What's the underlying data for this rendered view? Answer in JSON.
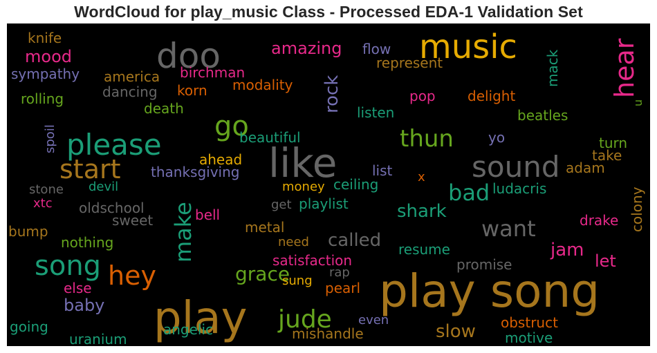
{
  "chart_data": {
    "type": "wordcloud",
    "title": "WordCloud for play_music Class - Processed EDA-1 Validation Set",
    "background": "#000000",
    "words": [
      {
        "text": "play song",
        "weight": 100,
        "color": "#a6761d"
      },
      {
        "text": "play",
        "weight": 92,
        "color": "#a6761d"
      },
      {
        "text": "like",
        "weight": 85,
        "color": "#666666"
      },
      {
        "text": "music",
        "weight": 68,
        "color": "#e6ab02"
      },
      {
        "text": "doo",
        "weight": 66,
        "color": "#666666"
      },
      {
        "text": "song",
        "weight": 60,
        "color": "#1b9e77"
      },
      {
        "text": "please",
        "weight": 60,
        "color": "#1b9e77"
      },
      {
        "text": "sound",
        "weight": 56,
        "color": "#666666"
      },
      {
        "text": "go",
        "weight": 56,
        "color": "#66a61e"
      },
      {
        "text": "start",
        "weight": 54,
        "color": "#a6761d"
      },
      {
        "text": "hey",
        "weight": 52,
        "color": "#d95f02"
      },
      {
        "text": "hear",
        "weight": 50,
        "color": "#e7298a"
      },
      {
        "text": "jude",
        "weight": 48,
        "color": "#66a61e"
      },
      {
        "text": "thun",
        "weight": 44,
        "color": "#66a61e"
      },
      {
        "text": "make",
        "weight": 42,
        "color": "#1b9e77"
      },
      {
        "text": "want",
        "weight": 42,
        "color": "#666666"
      },
      {
        "text": "bad",
        "weight": 40,
        "color": "#1b9e77"
      },
      {
        "text": "rock",
        "weight": 34,
        "color": "#7570b3"
      },
      {
        "text": "slow",
        "weight": 34,
        "color": "#a6761d"
      },
      {
        "text": "grace",
        "weight": 34,
        "color": "#66a61e"
      },
      {
        "text": "shark",
        "weight": 32,
        "color": "#1b9e77"
      },
      {
        "text": "called",
        "weight": 32,
        "color": "#666666"
      },
      {
        "text": "jam",
        "weight": 32,
        "color": "#e7298a"
      },
      {
        "text": "amazing",
        "weight": 28,
        "color": "#e7298a"
      },
      {
        "text": "mood",
        "weight": 28,
        "color": "#e7298a"
      },
      {
        "text": "baby",
        "weight": 28,
        "color": "#7570b3"
      },
      {
        "text": "let",
        "weight": 28,
        "color": "#e7298a"
      },
      {
        "text": "beautiful",
        "weight": 22,
        "color": "#1b9e77"
      },
      {
        "text": "thanksgiving",
        "weight": 22,
        "color": "#7570b3"
      },
      {
        "text": "satisfaction",
        "weight": 22,
        "color": "#e7298a"
      },
      {
        "text": "ahead",
        "weight": 22,
        "color": "#e6ab02"
      },
      {
        "text": "playlist",
        "weight": 22,
        "color": "#1b9e77"
      },
      {
        "text": "beatles",
        "weight": 22,
        "color": "#66a61e"
      },
      {
        "text": "ludacris",
        "weight": 22,
        "color": "#1b9e77"
      },
      {
        "text": "listen",
        "weight": 22,
        "color": "#1b9e77"
      },
      {
        "text": "represent",
        "weight": 22,
        "color": "#a6761d"
      },
      {
        "text": "flow",
        "weight": 22,
        "color": "#7570b3"
      },
      {
        "text": "mack",
        "weight": 22,
        "color": "#1b9e77"
      },
      {
        "text": "turn",
        "weight": 22,
        "color": "#66a61e"
      },
      {
        "text": "take",
        "weight": 22,
        "color": "#a6761d"
      },
      {
        "text": "adam",
        "weight": 22,
        "color": "#a6761d"
      },
      {
        "text": "colony",
        "weight": 22,
        "color": "#a6761d"
      },
      {
        "text": "drake",
        "weight": 22,
        "color": "#e7298a"
      },
      {
        "text": "promise",
        "weight": 22,
        "color": "#666666"
      },
      {
        "text": "resume",
        "weight": 22,
        "color": "#1b9e77"
      },
      {
        "text": "obstruct",
        "weight": 22,
        "color": "#d95f02"
      },
      {
        "text": "motive",
        "weight": 22,
        "color": "#1b9e77"
      },
      {
        "text": "mishandle",
        "weight": 22,
        "color": "#a6761d"
      },
      {
        "text": "pearl",
        "weight": 22,
        "color": "#d95f02"
      },
      {
        "text": "sung",
        "weight": 20,
        "color": "#e6ab02"
      },
      {
        "text": "rap",
        "weight": 20,
        "color": "#666666"
      },
      {
        "text": "need",
        "weight": 20,
        "color": "#a6761d"
      },
      {
        "text": "metal",
        "weight": 22,
        "color": "#a6761d"
      },
      {
        "text": "money",
        "weight": 20,
        "color": "#e6ab02"
      },
      {
        "text": "ceiling",
        "weight": 22,
        "color": "#1b9e77"
      },
      {
        "text": "list",
        "weight": 22,
        "color": "#7570b3"
      },
      {
        "text": "x",
        "weight": 20,
        "color": "#d95f02"
      },
      {
        "text": "yo",
        "weight": 22,
        "color": "#7570b3"
      },
      {
        "text": "pop",
        "weight": 22,
        "color": "#e7298a"
      },
      {
        "text": "delight",
        "weight": 22,
        "color": "#d95f02"
      },
      {
        "text": "u",
        "weight": 18,
        "color": "#66a61e"
      },
      {
        "text": "modality",
        "weight": 22,
        "color": "#d95f02"
      },
      {
        "text": "korn",
        "weight": 22,
        "color": "#d95f02"
      },
      {
        "text": "birchman",
        "weight": 22,
        "color": "#e7298a"
      },
      {
        "text": "america",
        "weight": 22,
        "color": "#a6761d"
      },
      {
        "text": "dancing",
        "weight": 22,
        "color": "#666666"
      },
      {
        "text": "death",
        "weight": 22,
        "color": "#66a61e"
      },
      {
        "text": "rolling",
        "weight": 22,
        "color": "#66a61e"
      },
      {
        "text": "sympathy",
        "weight": 22,
        "color": "#7570b3"
      },
      {
        "text": "knife",
        "weight": 22,
        "color": "#a6761d"
      },
      {
        "text": "spoil",
        "weight": 20,
        "color": "#7570b3"
      },
      {
        "text": "stone",
        "weight": 20,
        "color": "#666666"
      },
      {
        "text": "devil",
        "weight": 20,
        "color": "#1b9e77"
      },
      {
        "text": "xtc",
        "weight": 20,
        "color": "#e7298a"
      },
      {
        "text": "oldschool",
        "weight": 22,
        "color": "#666666"
      },
      {
        "text": "sweet",
        "weight": 22,
        "color": "#666666"
      },
      {
        "text": "get",
        "weight": 20,
        "color": "#666666"
      },
      {
        "text": "bell",
        "weight": 22,
        "color": "#e7298a"
      },
      {
        "text": "bump",
        "weight": 22,
        "color": "#a6761d"
      },
      {
        "text": "nothing",
        "weight": 22,
        "color": "#66a61e"
      },
      {
        "text": "else",
        "weight": 22,
        "color": "#e7298a"
      },
      {
        "text": "going",
        "weight": 22,
        "color": "#1b9e77"
      },
      {
        "text": "uranium",
        "weight": 22,
        "color": "#1b9e77"
      },
      {
        "text": "angelic",
        "weight": 22,
        "color": "#1b9e77"
      },
      {
        "text": "even",
        "weight": 20,
        "color": "#7570b3"
      }
    ]
  }
}
